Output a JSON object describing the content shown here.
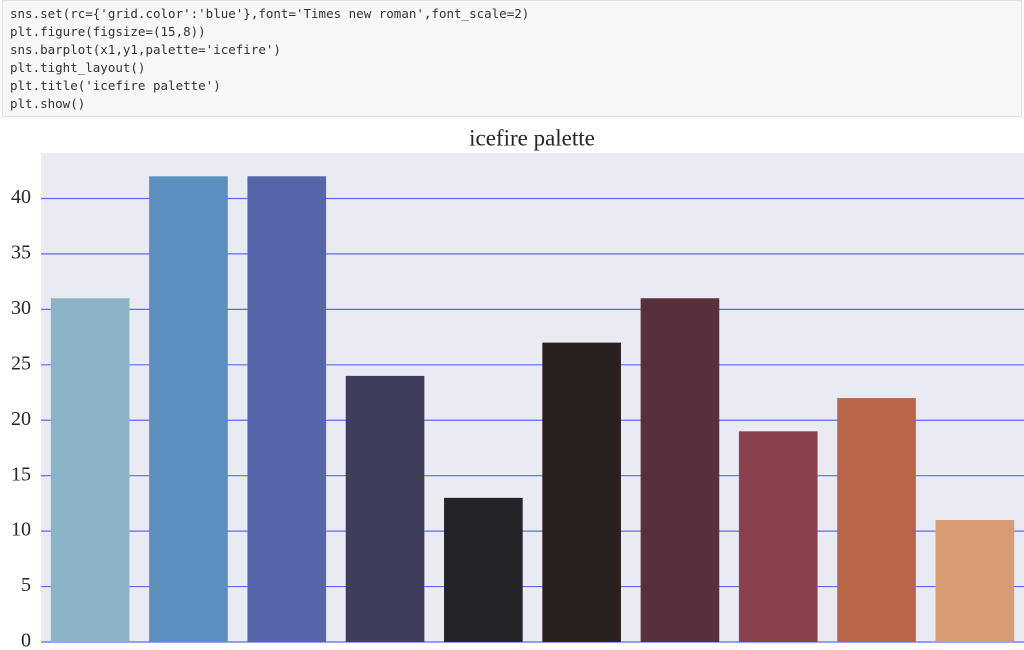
{
  "code": {
    "lines": [
      "sns.set(rc={'grid.color':'blue'},font='Times new roman',font_scale=2)",
      "plt.figure(figsize=(15,8))",
      "sns.barplot(x1,y1,palette='icefire')",
      "plt.tight_layout()",
      "plt.title('icefire palette')",
      "plt.show()"
    ]
  },
  "chart_data": {
    "type": "bar",
    "title": "icefire palette",
    "categories": [
      null,
      null,
      null,
      null,
      null,
      null,
      null,
      null,
      null,
      null
    ],
    "values": [
      31,
      42,
      42,
      24,
      13,
      27,
      31,
      19,
      22,
      11
    ],
    "colors": [
      "#8cb4c6",
      "#5c8fbb",
      "#5565a9",
      "#3f3d5c",
      "#242328",
      "#2b2020",
      "#57303c",
      "#8b404d",
      "#b8654c",
      "#d69b72"
    ],
    "ylim": [
      0,
      44.1
    ],
    "yticks": [
      0,
      5,
      10,
      15,
      20,
      25,
      30,
      35,
      40
    ],
    "grid": true,
    "grid_color": "#5b6cf2",
    "background": "#eaeaf2"
  }
}
